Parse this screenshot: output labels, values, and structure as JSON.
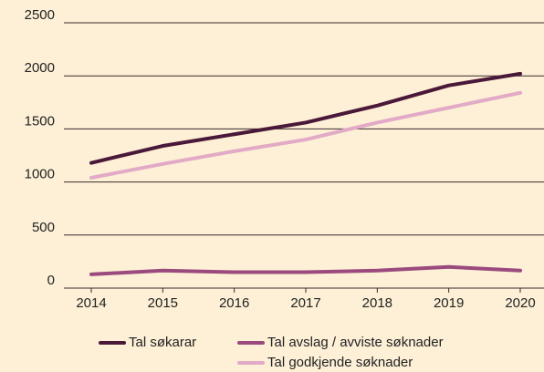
{
  "chart_data": {
    "type": "line",
    "categories": [
      "2014",
      "2015",
      "2016",
      "2017",
      "2018",
      "2019",
      "2020"
    ],
    "series": [
      {
        "name": "Tal søkarar",
        "color": "#4a1838",
        "values": [
          1180,
          1340,
          1450,
          1560,
          1720,
          1910,
          2020
        ]
      },
      {
        "name": "Tal avslag / avviste søknader",
        "color": "#9b4a7d",
        "values": [
          130,
          165,
          150,
          150,
          165,
          200,
          165
        ]
      },
      {
        "name": "Tal godkjende søknader",
        "color": "#e2aac6",
        "values": [
          1040,
          1170,
          1290,
          1400,
          1560,
          1700,
          1840
        ]
      }
    ],
    "ylim": [
      0,
      2500
    ],
    "yticks": [
      0,
      500,
      1000,
      1500,
      2000,
      2500
    ],
    "grid": true,
    "legend": "bottom"
  }
}
